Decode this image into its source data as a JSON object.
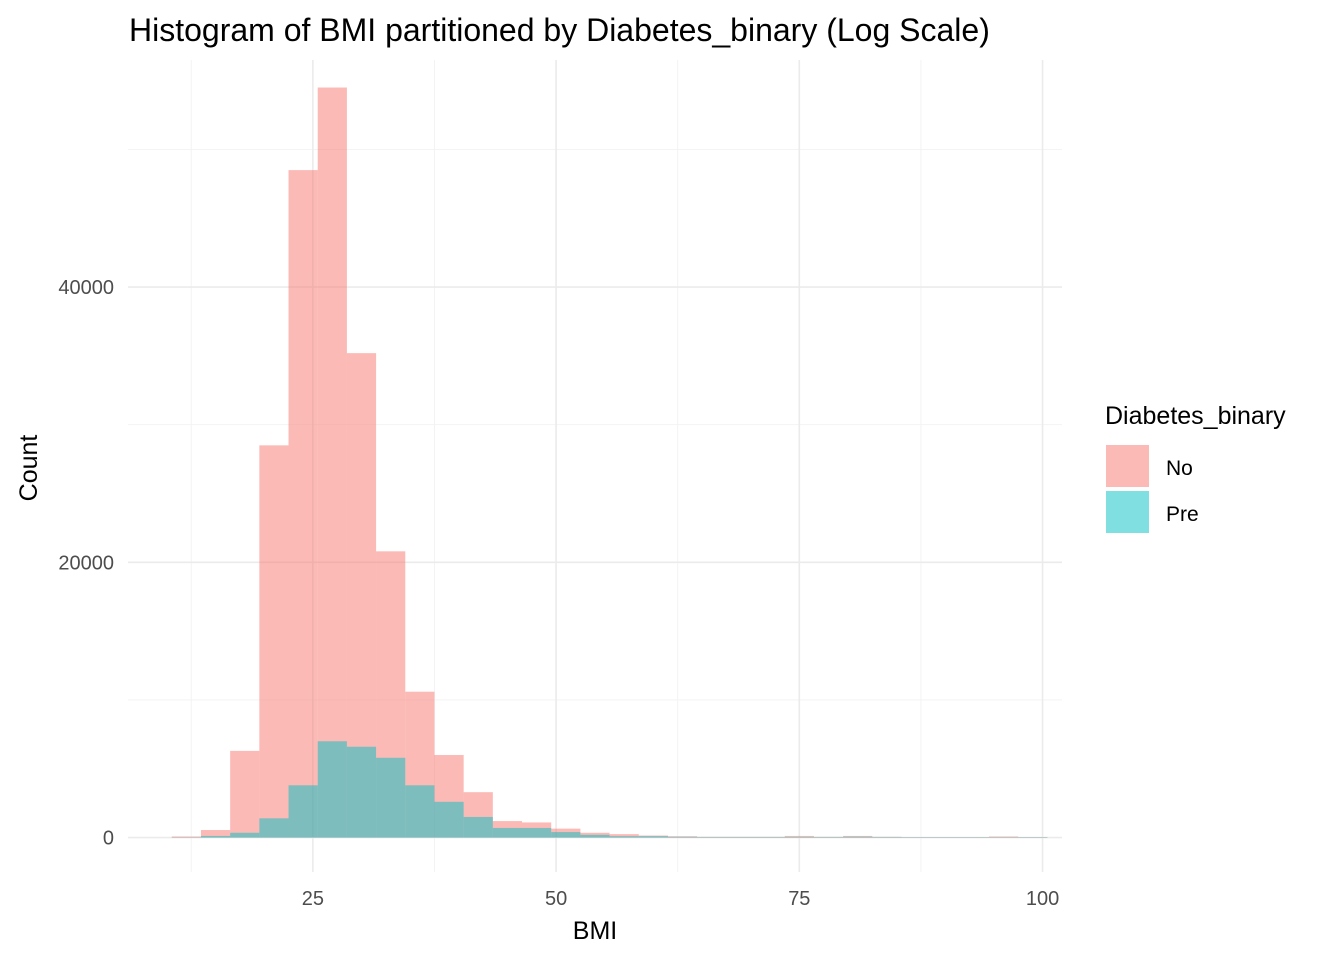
{
  "chart_data": {
    "type": "bar",
    "title": "Histogram of BMI partitioned by Diabetes_binary (Log Scale)",
    "xlabel": "BMI",
    "ylabel": "Count",
    "xlim": [
      6,
      102
    ],
    "ylim": [
      -2500,
      56500
    ],
    "x_ticks": [
      25,
      50,
      75,
      100
    ],
    "x_minor_ticks": [
      12.5,
      37.5,
      62.5,
      87.5
    ],
    "y_ticks": [
      0,
      20000,
      40000
    ],
    "y_minor_ticks": [
      10000,
      30000,
      50000
    ],
    "grid": true,
    "bin_width": 3,
    "bin_starts": [
      10.5,
      13.5,
      16.5,
      19.5,
      22.5,
      25.5,
      28.5,
      31.5,
      34.5,
      37.5,
      40.5,
      43.5,
      46.5,
      49.5,
      52.5,
      55.5,
      58.5,
      61.5,
      64.5,
      67.5,
      70.5,
      73.5,
      76.5,
      79.5,
      82.5,
      85.5,
      88.5,
      91.5,
      94.5,
      97.5
    ],
    "series": [
      {
        "name": "No",
        "color": "#F8766D",
        "values": [
          80,
          550,
          6300,
          28500,
          48500,
          54500,
          35200,
          20800,
          10600,
          6000,
          3300,
          1200,
          1100,
          650,
          350,
          250,
          150,
          100,
          60,
          60,
          60,
          120,
          60,
          120,
          60,
          40,
          40,
          40,
          80,
          40
        ]
      },
      {
        "name": "Pre",
        "color": "#00BFC4",
        "values": [
          20,
          120,
          350,
          1400,
          3800,
          7000,
          6600,
          5800,
          3800,
          2600,
          1500,
          700,
          700,
          400,
          200,
          100,
          100,
          50,
          40,
          40,
          40,
          50,
          40,
          60,
          40,
          30,
          30,
          30,
          30,
          30
        ]
      }
    ],
    "legend": {
      "title": "Diabetes_binary",
      "position": "right"
    }
  }
}
